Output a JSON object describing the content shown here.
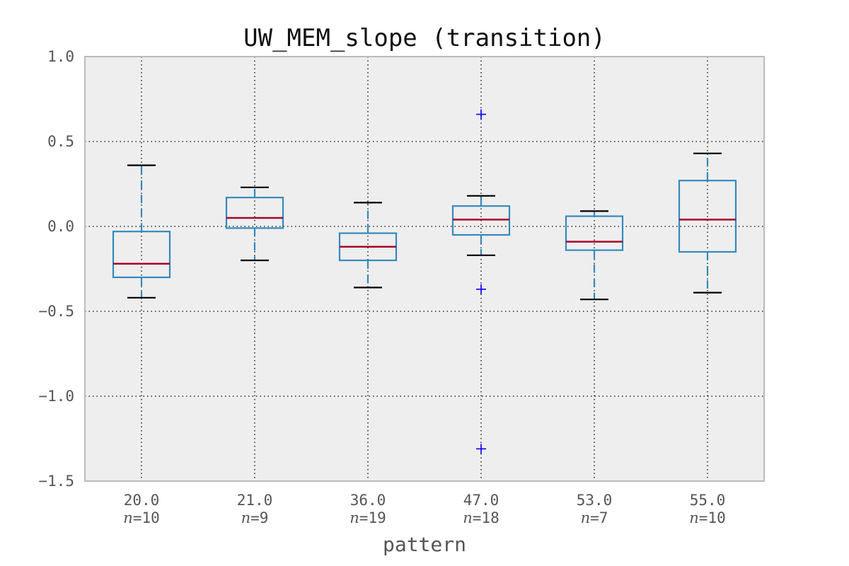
{
  "chart_data": {
    "type": "boxplot",
    "title": "UW_MEM_slope (transition)",
    "xlabel": "pattern",
    "ylabel": "",
    "ylim": [
      -1.5,
      1.0
    ],
    "yticks": [
      "1.0",
      "0.5",
      "0.0",
      "−0.5",
      "−1.0",
      "−1.5"
    ],
    "ytick_values": [
      1.0,
      0.5,
      0.0,
      -0.5,
      -1.0,
      -1.5
    ],
    "grid": true,
    "categories": [
      "20.0",
      "21.0",
      "36.0",
      "47.0",
      "53.0",
      "55.0"
    ],
    "n_prefix": "n",
    "counts": [
      "=10",
      "=9",
      "=19",
      "=18",
      "=7",
      "=10"
    ],
    "boxes": [
      {
        "whislo": -0.42,
        "q1": -0.3,
        "med": -0.22,
        "q3": -0.03,
        "whishi": 0.36,
        "fliers": []
      },
      {
        "whislo": -0.2,
        "q1": -0.01,
        "med": 0.05,
        "q3": 0.17,
        "whishi": 0.23,
        "fliers": []
      },
      {
        "whislo": -0.36,
        "q1": -0.2,
        "med": -0.12,
        "q3": -0.04,
        "whishi": 0.14,
        "fliers": []
      },
      {
        "whislo": -0.17,
        "q1": -0.05,
        "med": 0.04,
        "q3": 0.12,
        "whishi": 0.18,
        "fliers": [
          0.66,
          -0.37,
          -1.31
        ]
      },
      {
        "whislo": -0.43,
        "q1": -0.14,
        "med": -0.09,
        "q3": 0.06,
        "whishi": 0.09,
        "fliers": []
      },
      {
        "whislo": -0.39,
        "q1": -0.15,
        "med": 0.04,
        "q3": 0.27,
        "whishi": 0.43,
        "fliers": []
      }
    ],
    "colors": {
      "box": "#348ABD",
      "median": "#A60628",
      "whisker_cap": "#000000",
      "flier": "#0000FF",
      "axes_bg": "#EEEEEE",
      "axes_edge": "#BBBBBB",
      "grid": "#000000"
    }
  }
}
